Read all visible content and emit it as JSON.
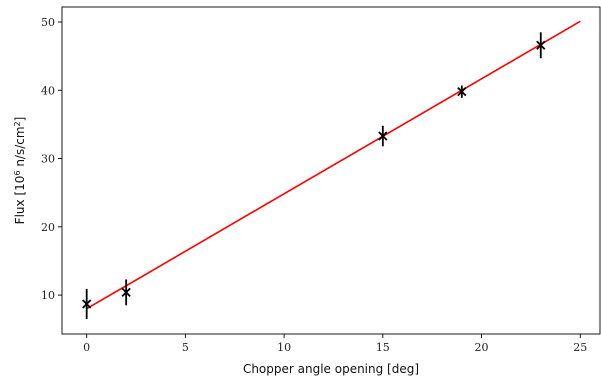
{
  "chart_data": {
    "type": "scatter",
    "title": "",
    "xlabel": "Chopper angle opening [deg]",
    "ylabel_prefix": "Flux [10",
    "ylabel_exp": "6",
    "ylabel_mid": " n/s/cm",
    "ylabel_sup2": "2",
    "ylabel_suffix": "]",
    "xlim": [
      -1.25,
      26.0
    ],
    "ylim": [
      4.3,
      52.2
    ],
    "xticks": [
      0,
      5,
      10,
      15,
      20,
      25
    ],
    "yticks": [
      10,
      20,
      30,
      40,
      50
    ],
    "grid": false,
    "series": [
      {
        "kind": "errorbar",
        "marker": "x",
        "color": "#000000",
        "x": [
          0,
          2,
          15,
          19,
          23
        ],
        "y": [
          8.7,
          10.4,
          33.3,
          39.8,
          46.6
        ],
        "yerr": [
          2.2,
          1.9,
          1.5,
          0.9,
          1.9
        ]
      },
      {
        "kind": "fit-line",
        "color": "#ff0000",
        "x": [
          0,
          25
        ],
        "y": [
          8.0,
          50.1
        ]
      }
    ]
  }
}
